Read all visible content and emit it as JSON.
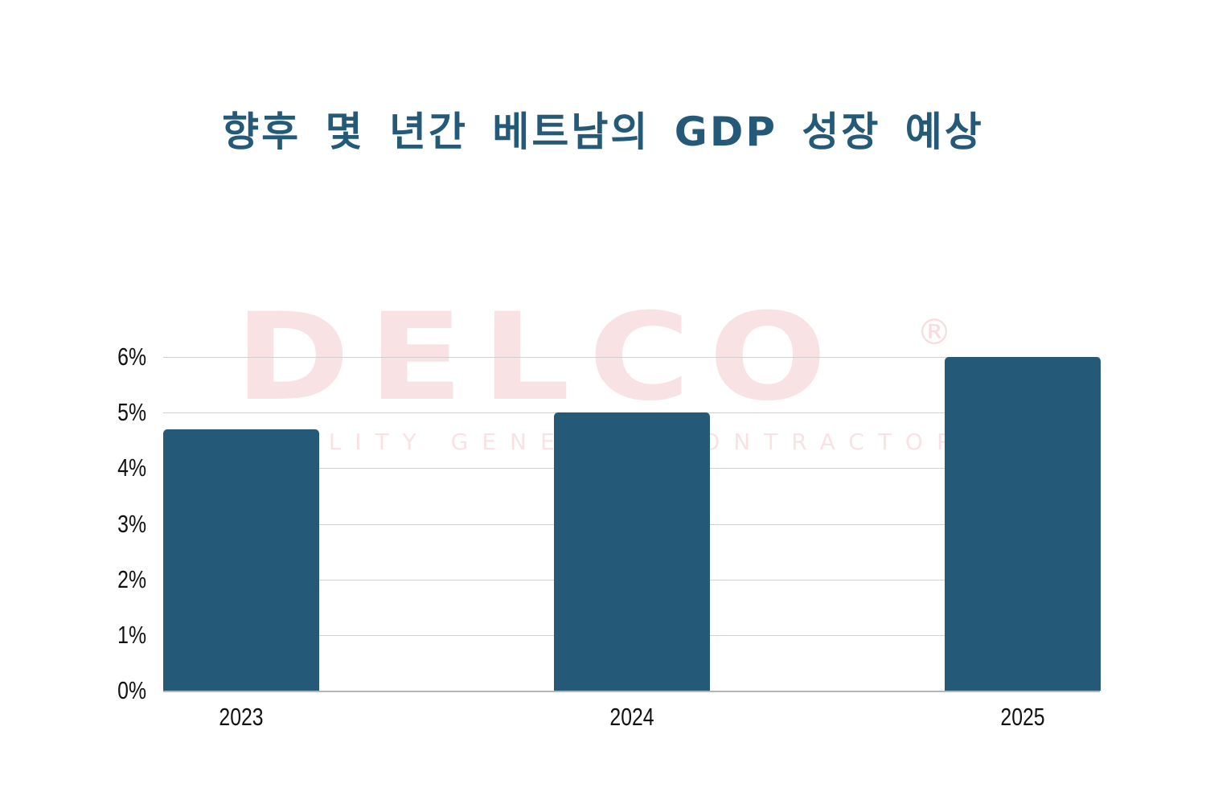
{
  "title": "향후 몇 년간 베트남의 GDP 성장 예상",
  "watermark": {
    "brand": "DELCO",
    "registered": "®",
    "tagline": "QUALITY GENERAL CONTRACTOR"
  },
  "colors": {
    "bar": "#245A78",
    "title": "#245A78",
    "grid": "#d0d0d0",
    "watermark": "#f5d6d8"
  },
  "y_ticks": [
    "0%",
    "1%",
    "2%",
    "3%",
    "4%",
    "5%",
    "6%"
  ],
  "x_ticks": [
    "2023",
    "2024",
    "2025"
  ],
  "chart_data": {
    "type": "bar",
    "title": "향후 몇 년간 베트남의 GDP 성장 예상",
    "categories": [
      "2023",
      "2024",
      "2025"
    ],
    "values": [
      4.7,
      5.0,
      6.0
    ],
    "unit": "%",
    "xlabel": "",
    "ylabel": "",
    "ylim": [
      0,
      6
    ],
    "yticks": [
      0,
      1,
      2,
      3,
      4,
      5,
      6
    ],
    "grid": true,
    "legend": null
  }
}
